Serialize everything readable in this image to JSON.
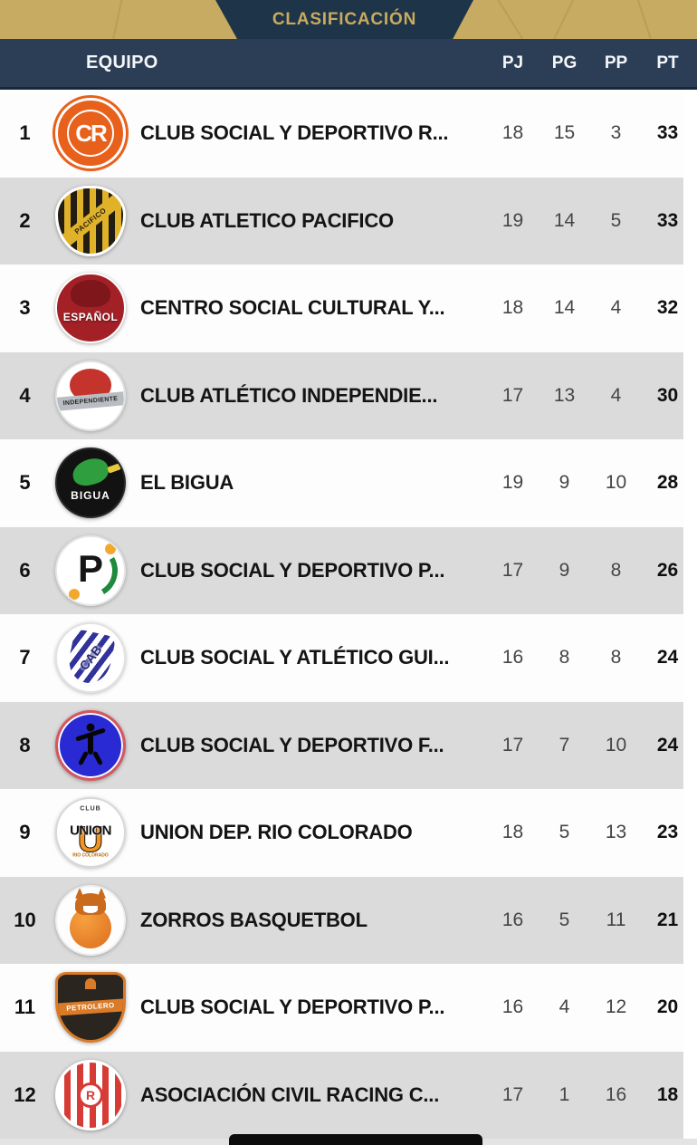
{
  "header": {
    "title": "CLASIFICACIÓN",
    "columns": {
      "team": "EQUIPO",
      "pj": "PJ",
      "pg": "PG",
      "pp": "PP",
      "pt": "PT"
    }
  },
  "colors": {
    "gold_band": "#c7ab62",
    "tab_navy": "#1e3449",
    "header_navy": "#2c3e56",
    "title_gold": "#c9ab5e",
    "stripe_gray": "#dbdbdb",
    "row_white": "#fdfdfd",
    "stat_gray": "#454545",
    "text_dark": "#141414"
  },
  "teams": [
    {
      "rank": "1",
      "name": "CLUB SOCIAL Y DEPORTIVO R...",
      "pj": "18",
      "pg": "15",
      "pp": "3",
      "pt": "33",
      "crest": {
        "base": "background:#e8611c;border:3px solid #fff;box-shadow:0 0 0 3px #e8611c,0 1px 4px rgba(0,0,0,.3)",
        "layers": [
          {
            "style": "width:52px;height:52px;border:2px solid #fff;border-radius:50%",
            "text": ""
          },
          {
            "style": "color:#fff;font-size:26px;font-weight:700;letter-spacing:-2px",
            "text": "CR"
          }
        ]
      }
    },
    {
      "rank": "2",
      "name": "CLUB ATLETICO PACIFICO",
      "pj": "19",
      "pg": "14",
      "pp": "5",
      "pt": "33",
      "crest": {
        "base": "background:repeating-linear-gradient(90deg,#221d10 0 7px,#dfb22a 7px 14px);border-radius:48% 48% 50% 50% / 42% 42% 60% 60%;border:3px solid #fff;box-shadow:0 1px 4px rgba(0,0,0,.35)",
        "layers": [
          {
            "style": "background:#dfb22a;width:120%;height:15px;transform:translate(-50%,-50%) rotate(-38deg);color:#221d10;font-size:8px;font-weight:800;letter-spacing:.5px",
            "text": "PACIFICO"
          }
        ]
      }
    },
    {
      "rank": "3",
      "name": "CENTRO SOCIAL CULTURAL Y...",
      "pj": "18",
      "pg": "14",
      "pp": "4",
      "pt": "32",
      "crest": {
        "base": "background:#a32026;border:2px solid #fff;box-shadow:0 1px 4px rgba(0,0,0,.35)",
        "layers": [
          {
            "style": "background:#7e161c;width:44px;height:30px;border-radius:55% 55% 45% 45%;margin-top:-16px",
            "text": ""
          },
          {
            "style": "color:#fff;font-size:12px;font-weight:800;letter-spacing:.5px;margin-top:10px;text-shadow:0 1px 2px rgba(0,0,0,.5)",
            "text": "ESPAÑOL"
          }
        ]
      }
    },
    {
      "rank": "4",
      "name": "CLUB ATLÉTICO INDEPENDIE...",
      "pj": "17",
      "pg": "13",
      "pp": "4",
      "pt": "30",
      "crest": {
        "base": "background:#fff;border:2px solid #e2e2e2;box-shadow:0 1px 4px rgba(0,0,0,.25)",
        "layers": [
          {
            "style": "background:#c5342c;width:46px;height:36px;border-radius:50% 50% 48% 48%;margin-top:-12px",
            "text": ""
          },
          {
            "style": "background:#b9bcc2;width:74px;height:15px;transform:translate(-50%,-50%) rotate(-5deg);color:#222;font-size:7px;font-weight:800;letter-spacing:.3px;margin-top:6px",
            "text": "INDEPENDIENTE"
          }
        ]
      }
    },
    {
      "rank": "5",
      "name": "EL BIGUA",
      "pj": "19",
      "pg": "9",
      "pp": "10",
      "pt": "28",
      "crest": {
        "base": "background:#121212;border:2px solid #2a2a2a;box-shadow:0 1px 4px rgba(0,0,0,.4)",
        "layers": [
          {
            "style": "background:#2f9e3f;width:40px;height:28px;border-radius:60% 50% 50% 45%;margin-top:-12px;transform:translate(-50%,-50%) rotate(-14deg)",
            "text": ""
          },
          {
            "style": "background:#e8c93c;width:14px;height:7px;border-radius:2px;margin:-16px 0 0 26px;transform:translate(-50%,-50%) rotate(-20deg)",
            "text": ""
          },
          {
            "style": "color:#fff;font-size:12px;font-weight:800;letter-spacing:1px;margin-top:14px",
            "text": "BIGUA"
          }
        ]
      }
    },
    {
      "rank": "6",
      "name": "CLUB SOCIAL Y DEPORTIVO P...",
      "pj": "17",
      "pg": "9",
      "pp": "8",
      "pt": "26",
      "crest": {
        "base": "background:#fff;border:2px solid #e6e6e6;box-shadow:0 1px 4px rgba(0,0,0,.25)",
        "layers": [
          {
            "style": "width:60px;height:60px;border-radius:50%;border:6px solid transparent;border-right:6px solid #1d8a3c;transform:translate(-50%,-50%) rotate(15deg)",
            "text": ""
          },
          {
            "style": "color:#161616;font-size:42px;font-weight:800;margin-top:-2px",
            "text": "P"
          },
          {
            "style": "background:#f1a82c;width:12px;height:12px;border-radius:50%;margin:-24px 0 0 22px",
            "text": ""
          },
          {
            "style": "background:#f1a82c;width:12px;height:12px;border-radius:50%;margin:26px 0 0 -18px",
            "text": ""
          }
        ]
      }
    },
    {
      "rank": "7",
      "name": "CLUB SOCIAL Y ATLÉTICO GUI...",
      "pj": "16",
      "pg": "8",
      "pp": "8",
      "pt": "24",
      "crest": {
        "base": "background:#fff;border:2px solid #e2e2e2;box-shadow:0 1px 4px rgba(0,0,0,.25)",
        "layers": [
          {
            "style": "background:repeating-linear-gradient(115deg,#fff 0 6px,#31339b 6px 12px);width:46px;height:56px;border-radius:10px 10px 48% 48%;transform:translate(-50%,-50%) rotate(12deg);box-shadow:0 0 0 2px #fff,0 1px 2px rgba(0,0,0,.3)",
            "text": ""
          },
          {
            "style": "color:#26286f;font-size:14px;font-weight:800;transform:translate(-50%,-50%) rotate(-52deg);text-shadow:0 0 3px #fff,0 0 3px #fff",
            "text": "CAB"
          }
        ]
      }
    },
    {
      "rank": "8",
      "name": "CLUB SOCIAL Y DEPORTIVO F...",
      "pj": "17",
      "pg": "7",
      "pp": "10",
      "pt": "24",
      "crest": {
        "base": "background:#2a2ad4;border:3px solid #d8565e;box-shadow:inset 0 0 0 2px #fff,0 1px 4px rgba(0,0,0,.35)",
        "layers": [
          {
            "style": "background:#06060a;width:9px;height:9px;border-radius:50%;margin-top:-20px",
            "text": ""
          },
          {
            "style": "background:#06060a;width:6px;height:24px;border-radius:3px;margin-top:-2px",
            "text": ""
          },
          {
            "style": "background:#06060a;width:34px;height:5px;border-radius:3px;margin-top:-12px;transform:translate(-50%,-50%) rotate(-18deg)",
            "text": ""
          },
          {
            "style": "background:#06060a;width:5px;height:16px;border-radius:3px;margin:14px 0 0 -8px;transform:translate(-50%,-50%) rotate(28deg)",
            "text": ""
          },
          {
            "style": "background:#06060a;width:5px;height:16px;border-radius:3px;margin:14px 0 0 8px;transform:translate(-50%,-50%) rotate(-28deg)",
            "text": ""
          }
        ]
      }
    },
    {
      "rank": "9",
      "name": "UNION DEP. RIO COLORADO",
      "pj": "18",
      "pg": "5",
      "pp": "13",
      "pt": "23",
      "crest": {
        "base": "background:#fff;border:2px solid #d8d8d8;box-shadow:0 1px 4px rgba(0,0,0,.25)",
        "layers": [
          {
            "style": "color:#f29422;font-size:40px;font-weight:900;margin-top:8px;-webkit-text-stroke:1px #111",
            "text": "U"
          },
          {
            "style": "color:#111;font-size:15px;font-weight:900;letter-spacing:-.5px;margin-top:-2px;text-shadow:0 0 2px #fff",
            "text": "UNION"
          },
          {
            "style": "color:#333;font-size:7px;font-weight:800;margin-top:-26px;letter-spacing:1px",
            "text": "CLUB"
          },
          {
            "style": "color:#b5690f;font-size:5px;font-weight:700;margin-top:26px",
            "text": "RIO COLORADO"
          }
        ]
      }
    },
    {
      "rank": "10",
      "name": "ZORROS BASQUETBOL",
      "pj": "16",
      "pg": "5",
      "pp": "11",
      "pt": "21",
      "crest": {
        "base": "background:#fdfdfd;border:2px solid #eee;box-shadow:0 1px 4px rgba(0,0,0,.25)",
        "layers": [
          {
            "style": "background:radial-gradient(circle at 35% 30%,#f6a13f,#dd6c1e);width:46px;height:46px;border-radius:50%;margin-top:8px",
            "text": ""
          },
          {
            "style": "background:#c96a1c;width:10px;height:12px;margin:-30px 0 0 -12px;clip-path:polygon(0 100%,50% 0,100% 100%)",
            "text": ""
          },
          {
            "style": "background:#c96a1c;width:10px;height:12px;margin:-30px 0 0 12px;clip-path:polygon(0 100%,50% 0,100% 100%)",
            "text": ""
          },
          {
            "style": "background:#c96a1c;width:34px;height:24px;border-radius:50% 50% 30% 30%;margin-top:-18px",
            "text": ""
          },
          {
            "style": "background:#fff;width:16px;height:8px;border-radius:0 0 50% 50%;margin:-12px 0 0 0",
            "text": ""
          }
        ]
      }
    },
    {
      "rank": "11",
      "name": "CLUB SOCIAL Y DEPORTIVO P...",
      "pj": "16",
      "pg": "4",
      "pp": "12",
      "pt": "20",
      "crest": {
        "base": "background:#2b2520;border:3px solid #d97b28;border-radius:16% 16% 50% 50% / 14% 14% 58% 58%;box-shadow:0 1px 4px rgba(0,0,0,.35)",
        "layers": [
          {
            "style": "background:#d97b28;width:12px;height:12px;border-radius:50% 50% 0 0;margin-top:-26px",
            "text": ""
          },
          {
            "style": "background:#d97b28;width:80px;height:14px;transform:translate(-50%,-50%) rotate(-4deg);color:#fff;font-size:8px;font-weight:800;letter-spacing:.4px",
            "text": "PETROLERO"
          }
        ]
      }
    },
    {
      "rank": "12",
      "name": "ASOCIACIÓN CIVIL RACING C...",
      "pj": "17",
      "pg": "1",
      "pp": "16",
      "pt": "18",
      "crest": {
        "base": "background:repeating-linear-gradient(90deg,#fff 0 7px,#d63c35 7px 14px);border:3px solid #fff;border-radius:50%;box-shadow:0 1px 4px rgba(0,0,0,.35)",
        "layers": [
          {
            "style": "background:#fff;width:28px;height:28px;border:3px solid #d63c35;border-radius:50%;color:#d63c35;font-size:14px;font-weight:900",
            "text": "R"
          }
        ]
      }
    }
  ]
}
